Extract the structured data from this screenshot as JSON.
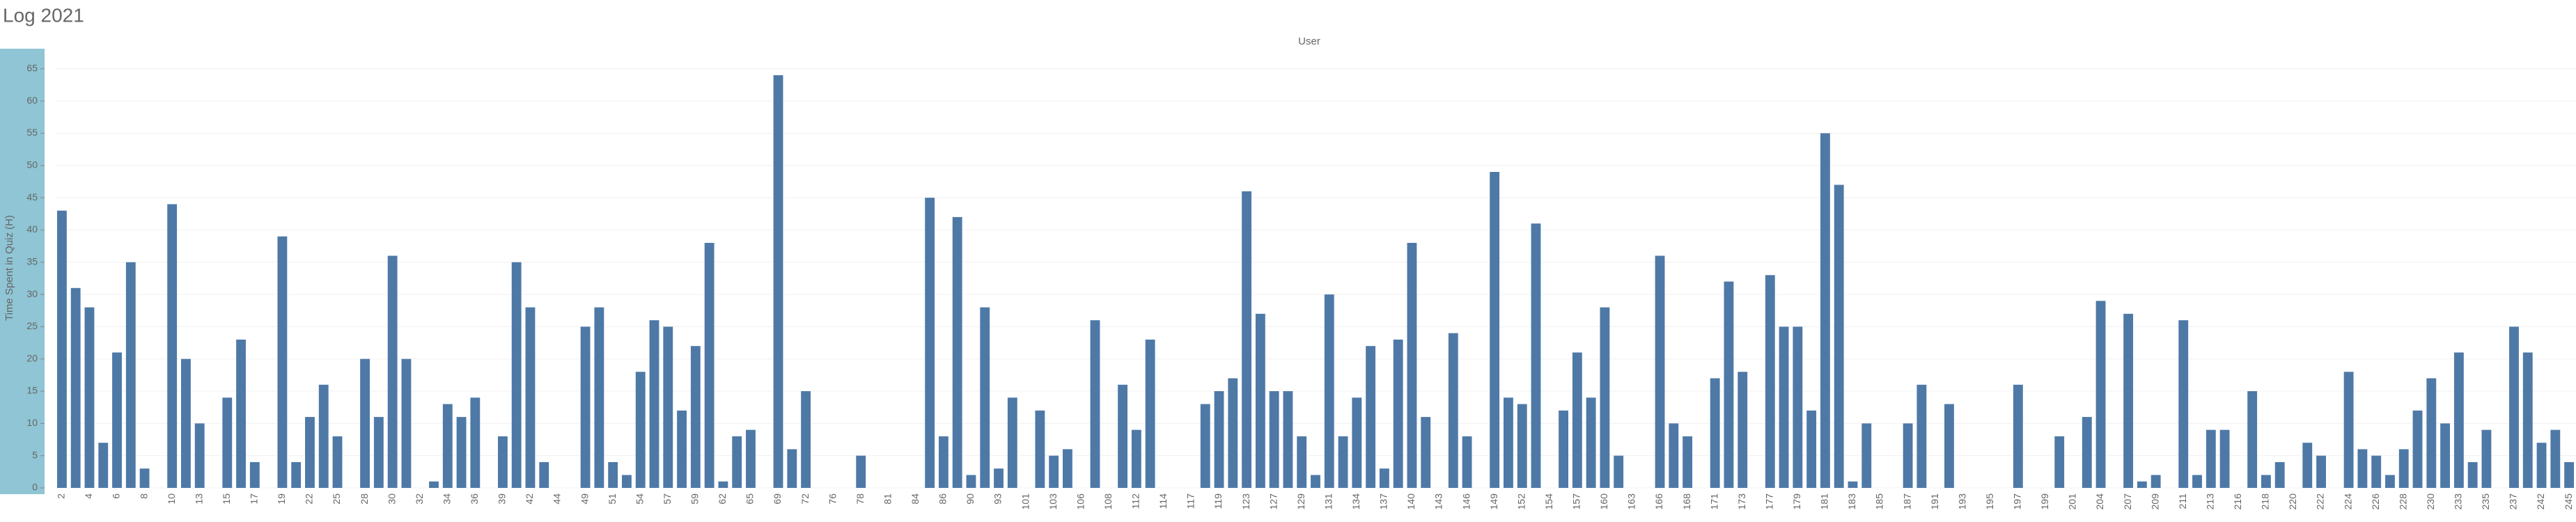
{
  "chart_data": {
    "type": "bar",
    "title": "Log 2021",
    "x_label": "User",
    "y_label": "Time Spent in Quiz (H)",
    "categories": [
      "2",
      null,
      "4",
      null,
      "6",
      null,
      "8",
      null,
      "10",
      null,
      "13",
      null,
      "15",
      null,
      "17",
      null,
      "19",
      null,
      "22",
      null,
      "25",
      null,
      "28",
      null,
      "30",
      null,
      "32",
      null,
      "34",
      null,
      "36",
      null,
      "39",
      null,
      "42",
      null,
      "44",
      null,
      "49",
      null,
      "51",
      null,
      "54",
      null,
      "57",
      null,
      "59",
      null,
      "62",
      null,
      "65",
      null,
      "69",
      null,
      "72",
      null,
      "76",
      null,
      "78",
      null,
      "81",
      null,
      "84",
      null,
      "86",
      null,
      "90",
      null,
      "93",
      null,
      "101",
      null,
      "103",
      null,
      "106",
      null,
      "108",
      null,
      "112",
      null,
      "114",
      null,
      "117",
      null,
      "119",
      null,
      "123",
      null,
      "127",
      null,
      "129",
      null,
      "131",
      null,
      "134",
      null,
      "137",
      null,
      "140",
      null,
      "143",
      null,
      "146",
      null,
      "149",
      null,
      "152",
      null,
      "154",
      null,
      "157",
      null,
      "160",
      null,
      "163",
      null,
      "166",
      null,
      "168",
      null,
      "171",
      null,
      "173",
      null,
      "177",
      null,
      "179",
      null,
      "181",
      null,
      "183",
      null,
      "185",
      null,
      "187",
      null,
      "191",
      null,
      "193",
      null,
      "195",
      null,
      "197",
      null,
      "199",
      null,
      "201",
      null,
      "204",
      null,
      "207",
      null,
      "209",
      null,
      "211",
      null,
      "213",
      null,
      "216",
      null,
      "218",
      null,
      "220",
      null,
      "222",
      null,
      "224",
      null,
      "226",
      null,
      "228",
      null,
      "230",
      null,
      "233",
      null,
      "235",
      null,
      "237",
      null,
      "242",
      null,
      "245"
    ],
    "values": [
      43,
      31,
      28,
      7,
      21,
      35,
      3,
      null,
      44,
      20,
      10,
      null,
      14,
      23,
      4,
      null,
      39,
      4,
      11,
      16,
      8,
      null,
      20,
      11,
      36,
      20,
      null,
      1,
      13,
      11,
      14,
      null,
      8,
      35,
      28,
      4,
      null,
      null,
      25,
      28,
      4,
      2,
      18,
      26,
      25,
      12,
      22,
      38,
      1,
      8,
      9,
      null,
      64,
      6,
      15,
      null,
      null,
      null,
      5,
      null,
      null,
      null,
      null,
      45,
      8,
      42,
      2,
      28,
      3,
      14,
      null,
      12,
      5,
      6,
      null,
      26,
      null,
      16,
      9,
      23,
      null,
      null,
      null,
      13,
      15,
      17,
      46,
      27,
      15,
      15,
      8,
      2,
      30,
      8,
      14,
      22,
      3,
      23,
      38,
      11,
      null,
      24,
      8,
      null,
      49,
      14,
      13,
      41,
      null,
      12,
      21,
      14,
      28,
      5,
      null,
      null,
      36,
      10,
      8,
      null,
      17,
      32,
      18,
      null,
      33,
      25,
      25,
      12,
      55,
      47,
      1,
      10,
      null,
      null,
      10,
      16,
      null,
      13,
      null,
      null,
      null,
      null,
      16,
      null,
      null,
      8,
      null,
      11,
      29,
      null,
      27,
      1,
      2,
      null,
      26,
      2,
      9,
      9,
      null,
      15,
      2,
      4,
      null,
      7,
      5,
      null,
      18,
      6,
      5,
      2,
      6,
      12,
      17,
      10,
      21,
      4,
      9,
      null,
      25,
      21,
      7,
      9,
      4
    ],
    "color": "#4e79a7",
    "ylim": [
      0,
      68
    ],
    "yticks": [
      0,
      5,
      10,
      15,
      20,
      25,
      30,
      35,
      40,
      45,
      50,
      55,
      60,
      65
    ],
    "grid": true
  }
}
